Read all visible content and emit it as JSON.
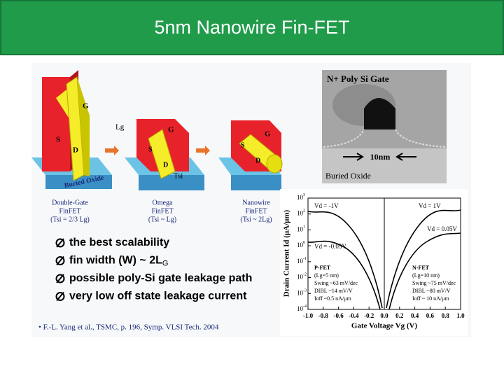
{
  "header": {
    "title": "5nm Nanowire Fin-FET"
  },
  "device_figure": {
    "labels": {
      "gate": "G",
      "source": "S",
      "drain": "D",
      "gate_length": "Lg",
      "thickness": "Tsi",
      "oxide": "Buried Oxide"
    },
    "devices": [
      {
        "name": "Double-Gate",
        "kind": "FinFET",
        "rule": "(Tsi = 2/3 Lg)"
      },
      {
        "name": "Omega",
        "kind": "FinFET",
        "rule": "(Tsi ~ Lg)"
      },
      {
        "name": "Nanowire",
        "kind": "FinFET",
        "rule": "(Tsi ~ 2Lg)"
      }
    ]
  },
  "bullets": [
    {
      "text": "the best scalability"
    },
    {
      "text": "fin width (W) ~ 2L",
      "sub": "G"
    },
    {
      "text": "possible poly-Si gate leakage path"
    },
    {
      "text": "very low off state leakage current"
    }
  ],
  "citation": "• F.-L. Yang et al., TSMC, p. 196, Symp. VLSI Tech. 2004",
  "tem_image": {
    "gate": "N+ Poly Si Gate",
    "scale": "10nm",
    "oxide": "Buried Oxide"
  },
  "iv_plot": {
    "y_label": "Drain Current Id (μA/μm)",
    "x_label": "Gate Voltage Vg (V)",
    "xticks": [
      "-1.0",
      "-0.8",
      "-0.6",
      "-0.4",
      "-0.2",
      "0.0",
      "0.2",
      "0.4",
      "0.6",
      "0.8",
      "1.0"
    ],
    "yticks": [
      {
        "base": "10",
        "exp": "3"
      },
      {
        "base": "10",
        "exp": "2"
      },
      {
        "base": "10",
        "exp": "1"
      },
      {
        "base": "10",
        "exp": "0"
      },
      {
        "base": "10",
        "exp": "-1"
      },
      {
        "base": "10",
        "exp": "-2"
      },
      {
        "base": "10",
        "exp": "-3"
      },
      {
        "base": "10",
        "exp": "-4"
      }
    ],
    "curve_labels": [
      "Vd = -1V",
      "Vd = 1V",
      "Vd = 0.05V",
      "Vd = -0.05V"
    ],
    "pfet": [
      "P-FET",
      "(Lg=5 nm)",
      "Swing ~63 mV/dec",
      "DIBL ~14 mV/V",
      "Ioff ~0.5 nA/μm"
    ],
    "nfet": [
      "N-FET",
      "(Lg=10 nm)",
      "Swing ~75 mV/dec",
      "DIBL ~80 mV/V",
      "Ioff ~ 10 nA/μm"
    ]
  }
}
